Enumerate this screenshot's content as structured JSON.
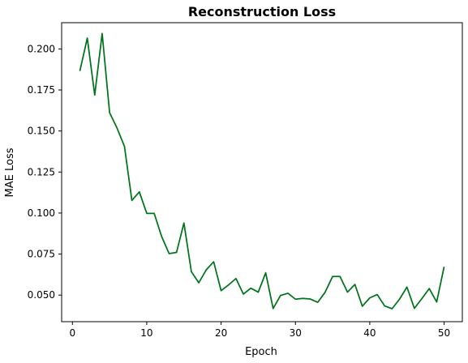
{
  "chart_data": {
    "type": "line",
    "title": "Reconstruction Loss",
    "xlabel": "Epoch",
    "ylabel": "MAE Loss",
    "xlim": [
      -1.45,
      52.45
    ],
    "ylim": [
      0.0338,
      0.216
    ],
    "xticks": [
      0,
      10,
      20,
      30,
      40,
      50
    ],
    "xtick_labels": [
      "0",
      "10",
      "20",
      "30",
      "40",
      "50"
    ],
    "yticks": [
      0.05,
      0.075,
      0.1,
      0.125,
      0.15,
      0.175,
      0.2
    ],
    "ytick_labels": [
      "0.050",
      "0.075",
      "0.100",
      "0.125",
      "0.150",
      "0.175",
      "0.200"
    ],
    "grid": false,
    "legend": "none",
    "series": [
      {
        "color": "#00741a",
        "x": [
          1,
          2,
          3,
          4,
          5,
          6,
          7,
          8,
          9,
          10,
          11,
          12,
          13,
          14,
          15,
          16,
          17,
          18,
          19,
          20,
          21,
          22,
          23,
          24,
          25,
          26,
          27,
          28,
          29,
          30,
          31,
          32,
          33,
          34,
          35,
          36,
          37,
          38,
          39,
          40,
          41,
          42,
          43,
          44,
          45,
          46,
          47,
          48,
          49,
          50
        ],
        "y": [
          0.1865,
          0.2066,
          0.1719,
          0.2094,
          0.1612,
          0.1518,
          0.1406,
          0.1077,
          0.1129,
          0.0998,
          0.0998,
          0.0857,
          0.0753,
          0.076,
          0.0939,
          0.0643,
          0.0575,
          0.0654,
          0.0703,
          0.0527,
          0.0562,
          0.0601,
          0.0506,
          0.0542,
          0.0518,
          0.0636,
          0.0418,
          0.0498,
          0.0511,
          0.0475,
          0.048,
          0.0476,
          0.0456,
          0.0518,
          0.0613,
          0.0613,
          0.0518,
          0.0565,
          0.0432,
          0.0483,
          0.0503,
          0.0434,
          0.0417,
          0.0475,
          0.0549,
          0.0419,
          0.0478,
          0.054,
          0.0458,
          0.0673
        ]
      }
    ]
  }
}
